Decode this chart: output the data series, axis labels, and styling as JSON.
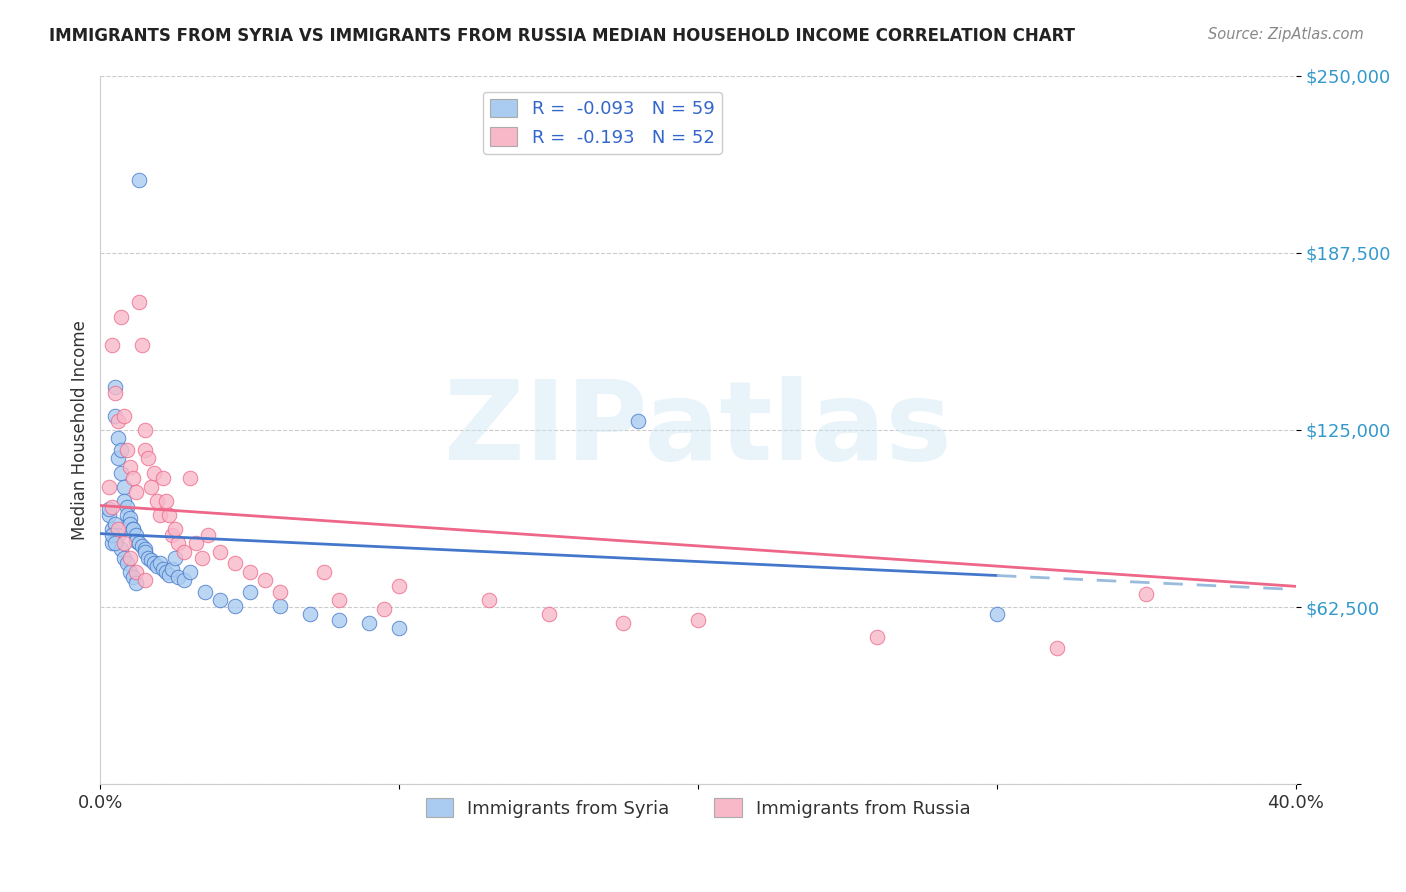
{
  "title": "IMMIGRANTS FROM SYRIA VS IMMIGRANTS FROM RUSSIA MEDIAN HOUSEHOLD INCOME CORRELATION CHART",
  "source": "Source: ZipAtlas.com",
  "ylabel": "Median Household Income",
  "watermark": "ZIPatlas",
  "legend_entries": [
    {
      "label": "R =  -0.093   N = 59",
      "color": "#aaccf0"
    },
    {
      "label": "R =  -0.193   N = 52",
      "color": "#f8b8c8"
    }
  ],
  "legend_bottom": [
    {
      "label": "Immigrants from Syria",
      "color": "#aaccf0"
    },
    {
      "label": "Immigrants from Russia",
      "color": "#f8b8c8"
    }
  ],
  "xlim": [
    0.0,
    0.4
  ],
  "ylim": [
    0,
    250000
  ],
  "yticks": [
    0,
    62500,
    125000,
    187500,
    250000
  ],
  "ytick_labels": [
    "",
    "$62,500",
    "$125,000",
    "$187,500",
    "$250,000"
  ],
  "xticks": [
    0.0,
    0.1,
    0.2,
    0.3,
    0.4
  ],
  "xtick_labels": [
    "0.0%",
    "",
    "",
    "",
    "40.0%"
  ],
  "grid_color": "#cccccc",
  "background_color": "#ffffff",
  "syria_color": "#aaccf0",
  "russia_color": "#f8b8c8",
  "syria_line_color": "#4477cc",
  "russia_line_color": "#ee6688",
  "dashed_syria_color": "#99bbdd",
  "dashed_russia_color": "#dd88aa",
  "syria_x": [
    0.013,
    0.005,
    0.005,
    0.006,
    0.006,
    0.007,
    0.007,
    0.008,
    0.008,
    0.009,
    0.009,
    0.01,
    0.01,
    0.011,
    0.011,
    0.012,
    0.012,
    0.013,
    0.014,
    0.015,
    0.015,
    0.016,
    0.017,
    0.018,
    0.019,
    0.02,
    0.021,
    0.022,
    0.023,
    0.024,
    0.025,
    0.026,
    0.028,
    0.03,
    0.003,
    0.004,
    0.004,
    0.005,
    0.006,
    0.007,
    0.008,
    0.009,
    0.01,
    0.011,
    0.012,
    0.035,
    0.04,
    0.045,
    0.05,
    0.06,
    0.07,
    0.08,
    0.09,
    0.1,
    0.18,
    0.003,
    0.004,
    0.005,
    0.3
  ],
  "syria_y": [
    213000,
    140000,
    130000,
    122000,
    115000,
    118000,
    110000,
    105000,
    100000,
    98000,
    95000,
    94000,
    92000,
    90000,
    90000,
    88000,
    86000,
    85000,
    84000,
    83000,
    82000,
    80000,
    79000,
    78000,
    77000,
    78000,
    76000,
    75000,
    74000,
    76000,
    80000,
    73000,
    72000,
    75000,
    95000,
    90000,
    85000,
    92000,
    88000,
    83000,
    80000,
    78000,
    75000,
    73000,
    71000,
    68000,
    65000,
    63000,
    68000,
    63000,
    60000,
    58000,
    57000,
    55000,
    128000,
    97000,
    88000,
    85000,
    60000
  ],
  "russia_x": [
    0.004,
    0.005,
    0.006,
    0.007,
    0.008,
    0.009,
    0.01,
    0.011,
    0.012,
    0.013,
    0.014,
    0.015,
    0.015,
    0.016,
    0.017,
    0.018,
    0.019,
    0.02,
    0.021,
    0.022,
    0.023,
    0.024,
    0.025,
    0.026,
    0.028,
    0.03,
    0.032,
    0.034,
    0.036,
    0.04,
    0.045,
    0.05,
    0.055,
    0.06,
    0.075,
    0.08,
    0.095,
    0.1,
    0.13,
    0.15,
    0.175,
    0.2,
    0.26,
    0.32,
    0.35,
    0.003,
    0.004,
    0.006,
    0.008,
    0.01,
    0.012,
    0.015
  ],
  "russia_y": [
    155000,
    138000,
    128000,
    165000,
    130000,
    118000,
    112000,
    108000,
    103000,
    170000,
    155000,
    118000,
    125000,
    115000,
    105000,
    110000,
    100000,
    95000,
    108000,
    100000,
    95000,
    88000,
    90000,
    85000,
    82000,
    108000,
    85000,
    80000,
    88000,
    82000,
    78000,
    75000,
    72000,
    68000,
    75000,
    65000,
    62000,
    70000,
    65000,
    60000,
    57000,
    58000,
    52000,
    48000,
    67000,
    105000,
    98000,
    90000,
    85000,
    80000,
    75000,
    72000
  ]
}
